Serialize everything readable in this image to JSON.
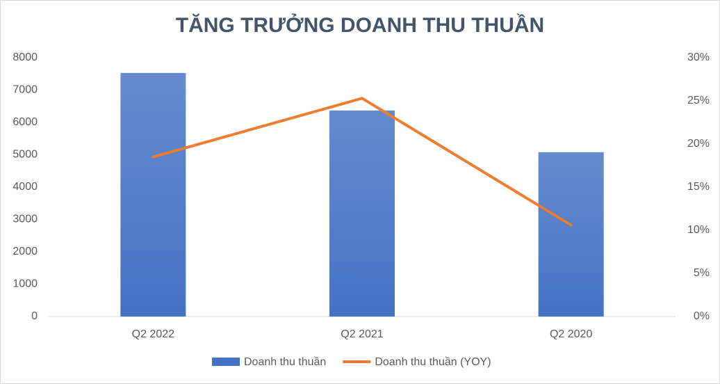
{
  "chart_data": {
    "type": "combo",
    "title": "TĂNG TRƯỞNG DOANH THU THUẦN",
    "categories": [
      "Q2 2022",
      "Q2 2021",
      "Q2 2020"
    ],
    "series": [
      {
        "name": "Doanh thu thuần",
        "type": "bar",
        "color": "#4472c4",
        "values": [
          7530,
          6370,
          5080
        ]
      },
      {
        "name": "Doanh thu thuần (YOY)",
        "type": "line",
        "axis": "y2",
        "color": "#ed7d31",
        "values": [
          18.5,
          25.3,
          10.6
        ]
      }
    ],
    "ylim": [
      0,
      8000
    ],
    "yticks": [
      0,
      1000,
      2000,
      3000,
      4000,
      5000,
      6000,
      7000,
      8000
    ],
    "y2lim": [
      0,
      30
    ],
    "y2ticks": [
      {
        "value": 0,
        "label": "0%"
      },
      {
        "value": 5,
        "label": "5%"
      },
      {
        "value": 10,
        "label": "10%"
      },
      {
        "value": 15,
        "label": "15%"
      },
      {
        "value": 20,
        "label": "20%"
      },
      {
        "value": 25,
        "label": "25%"
      },
      {
        "value": 30,
        "label": "30%"
      }
    ],
    "grid": false,
    "legend": "bottom"
  }
}
